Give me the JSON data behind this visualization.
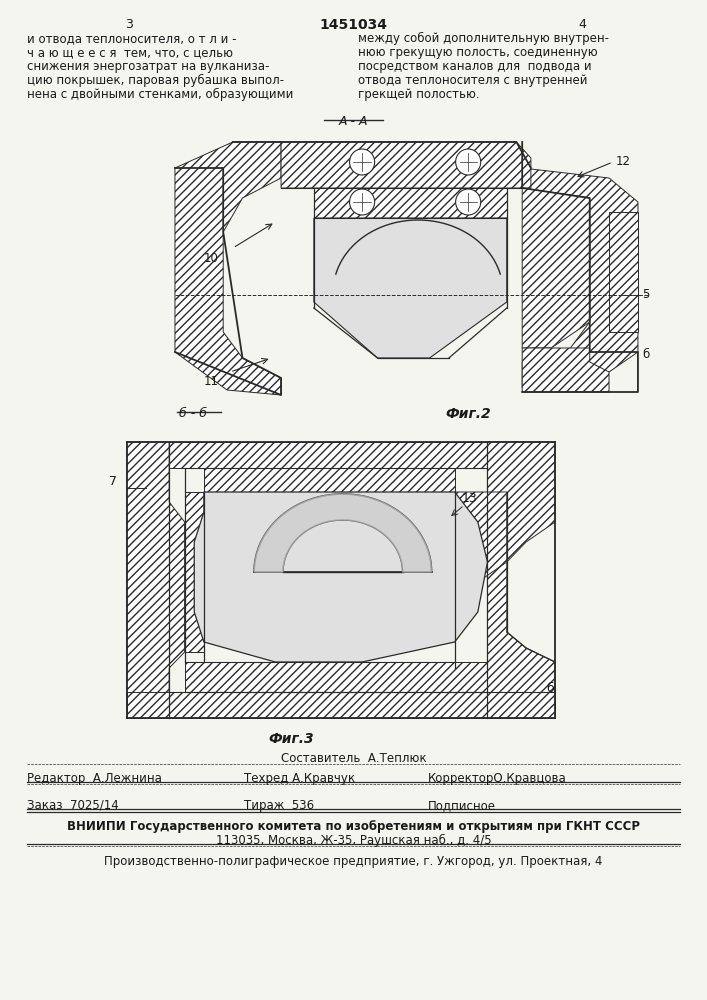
{
  "page_number_left": "3",
  "page_number_center": "1451034",
  "page_number_right": "4",
  "text_left": "и отвода теплоносителя, о т л и -\nч а ю щ е е с я  тем, что, с целью\nснижения энергозатрат на вулканиза-\nцию покрышек, паровая рубашка выпол-\nнена с двойными стенками, образующими",
  "text_right": "между собой дополнительную внутрен-\nнюю грекущую полость, соединенную\nпосредством каналов для  подвода и\nотвода теплоносителя с внутренней\nгрекщей полостью.",
  "section_label_aa": "А - А",
  "section_label_bb": "б - б",
  "fig2_label": "Фиг.2",
  "fig3_label": "Фиг.3",
  "label_5": "5",
  "label_6": "б",
  "label_7": "7",
  "label_10": "10",
  "label_11": "11",
  "label_12": "12",
  "label_13": "13",
  "sostavitel": "Составитель  А.Теплюк",
  "redaktor": "Редактор  А.Лежнина",
  "tehred": "Техред А.Кравчук",
  "korrektor": "КорректорО.Кравцова",
  "zakaz": "Заказ  7025/14",
  "tirazh": "Тираж  536",
  "podpisnoe": "Подписное",
  "vniip_line1": "ВНИИПИ Государственного комитета по изобретениям и открытиям при ГКНТ СССР",
  "vniip_line2": "113035, Москва, Ж-35, Раушская наб., д. 4/5",
  "proizv": "Производственно-полиграфическое предприятие, г. Ужгород, ул. Проектная, 4",
  "bg_color": "#f5f5f0",
  "text_color": "#1a1a1a",
  "line_color": "#2a2a2a"
}
